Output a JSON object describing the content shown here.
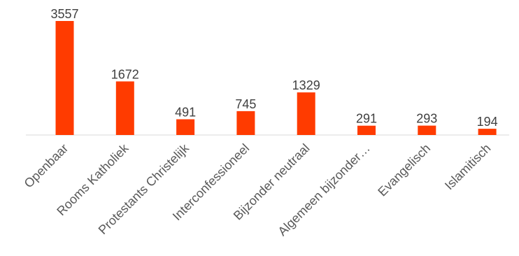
{
  "chart_data": {
    "type": "bar",
    "title": "",
    "xlabel": "",
    "ylabel": "",
    "categories": [
      "Openbaar",
      "Rooms Katholiek",
      "Protestants Christelijk",
      "Interconfessioneel",
      "Bijzonder neutraal",
      "Algemeen bijzonder…",
      "Evangelisch",
      "Islamitisch"
    ],
    "values": [
      3557,
      1672,
      491,
      745,
      1329,
      291,
      293,
      194
    ],
    "data_labels": [
      "3557",
      "1672",
      "491",
      "745",
      "1329",
      "291",
      "293",
      "194"
    ],
    "ylim": [
      0,
      3557
    ],
    "grid": false,
    "legend": "none",
    "colors": {
      "bar": "#ff3b00",
      "label": "#404040",
      "axis": "#d9d9d9"
    }
  }
}
